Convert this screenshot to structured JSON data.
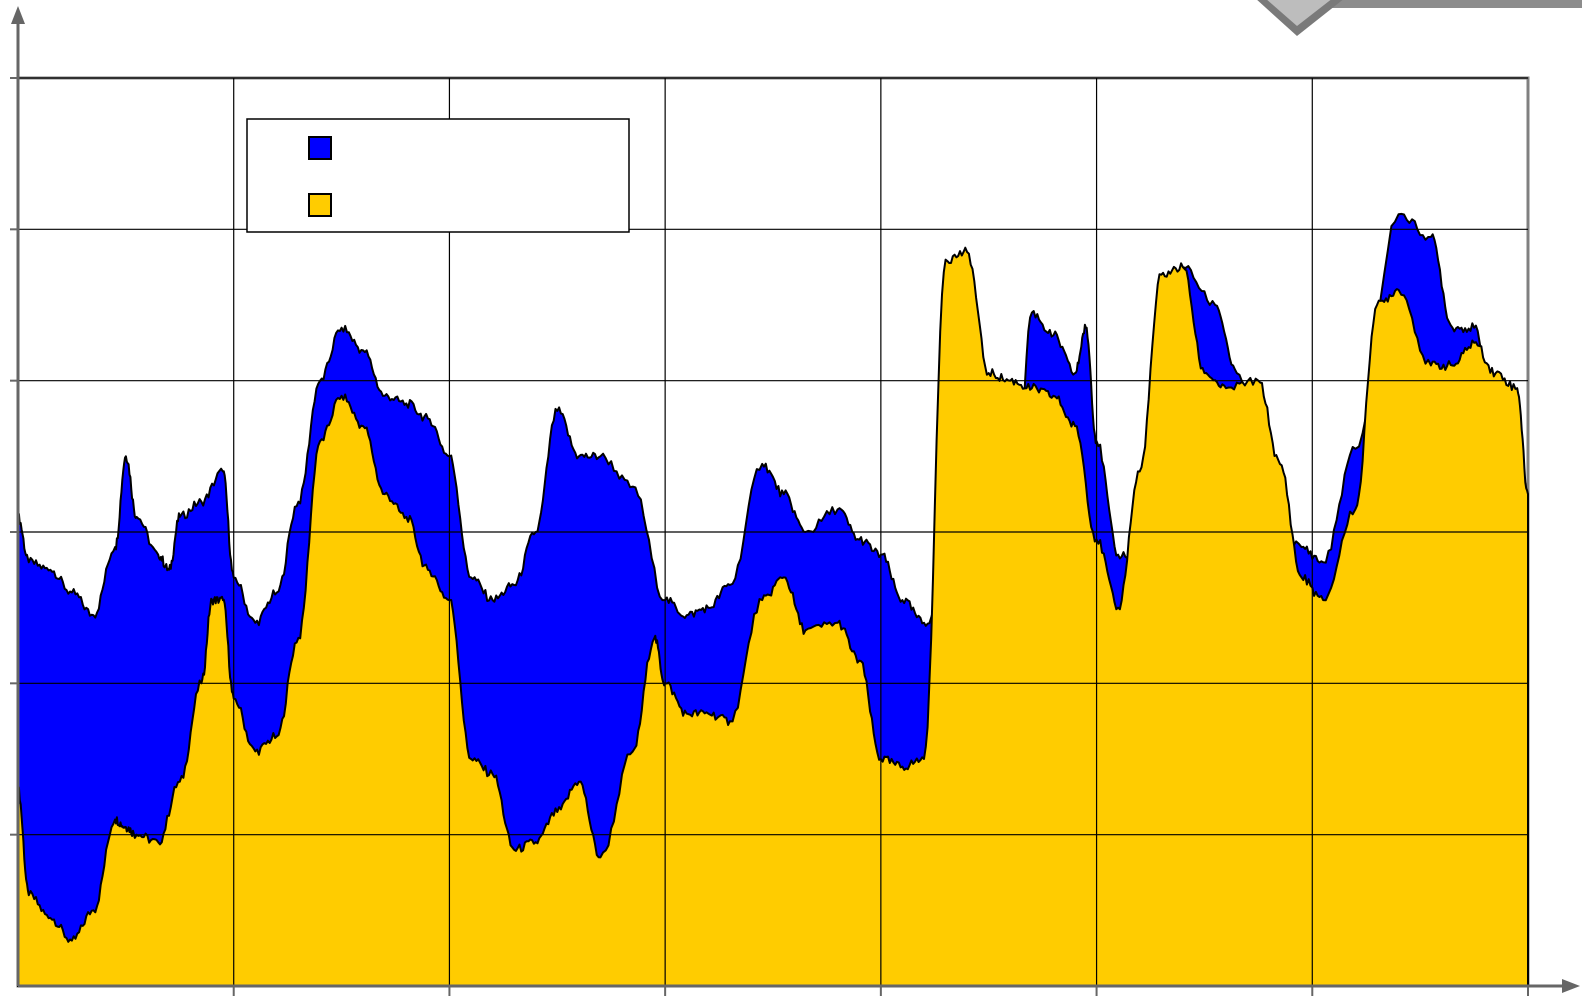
{
  "chart_data": {
    "type": "area",
    "stacked": false,
    "title": "",
    "xlabel": "",
    "ylabel": "",
    "grid": true,
    "legend_position": "top-left",
    "xlim": [
      0,
      700
    ],
    "ylim": [
      0,
      6
    ],
    "x_grid_lines": [
      0,
      100,
      200,
      300,
      400,
      500,
      600,
      700
    ],
    "y_grid_lines": [
      0,
      1,
      2,
      3,
      4,
      5,
      6
    ],
    "series": [
      {
        "name": "",
        "color": "#0000FF",
        "points": [
          [
            0,
            3.1
          ],
          [
            5,
            2.8
          ],
          [
            15,
            2.75
          ],
          [
            25,
            2.6
          ],
          [
            35,
            2.45
          ],
          [
            45,
            2.9
          ],
          [
            50,
            3.5
          ],
          [
            55,
            3.1
          ],
          [
            65,
            2.85
          ],
          [
            70,
            2.75
          ],
          [
            75,
            3.1
          ],
          [
            85,
            3.2
          ],
          [
            95,
            3.4
          ],
          [
            100,
            2.7
          ],
          [
            110,
            2.4
          ],
          [
            120,
            2.6
          ],
          [
            130,
            3.2
          ],
          [
            140,
            4.0
          ],
          [
            150,
            4.35
          ],
          [
            160,
            4.2
          ],
          [
            170,
            3.9
          ],
          [
            180,
            3.85
          ],
          [
            190,
            3.75
          ],
          [
            200,
            3.5
          ],
          [
            210,
            2.7
          ],
          [
            220,
            2.55
          ],
          [
            230,
            2.65
          ],
          [
            240,
            3.0
          ],
          [
            250,
            3.8
          ],
          [
            260,
            3.5
          ],
          [
            270,
            3.5
          ],
          [
            285,
            3.3
          ],
          [
            300,
            2.55
          ],
          [
            310,
            2.45
          ],
          [
            320,
            2.5
          ],
          [
            330,
            2.65
          ],
          [
            345,
            3.45
          ],
          [
            355,
            3.25
          ],
          [
            365,
            3.0
          ],
          [
            380,
            3.15
          ],
          [
            390,
            2.95
          ],
          [
            400,
            2.85
          ],
          [
            410,
            2.55
          ],
          [
            420,
            2.4
          ],
          [
            430,
            2.55
          ],
          [
            440,
            2.3
          ],
          [
            450,
            2.55
          ],
          [
            460,
            2.5
          ],
          [
            470,
            4.45
          ],
          [
            480,
            4.3
          ],
          [
            490,
            4.05
          ],
          [
            495,
            4.35
          ],
          [
            500,
            3.6
          ],
          [
            510,
            2.85
          ],
          [
            520,
            2.85
          ],
          [
            530,
            3.8
          ],
          [
            540,
            4.75
          ],
          [
            555,
            4.5
          ],
          [
            565,
            4.05
          ],
          [
            580,
            3.15
          ],
          [
            595,
            2.9
          ],
          [
            605,
            2.8
          ],
          [
            620,
            3.55
          ],
          [
            640,
            5.1
          ],
          [
            655,
            4.95
          ],
          [
            665,
            4.35
          ],
          [
            675,
            4.35
          ],
          [
            685,
            3.65
          ],
          [
            700,
            3.25
          ]
        ]
      },
      {
        "name": "",
        "color": "#FFCC00",
        "points": [
          [
            0,
            1.3
          ],
          [
            5,
            0.6
          ],
          [
            15,
            0.45
          ],
          [
            25,
            0.3
          ],
          [
            35,
            0.5
          ],
          [
            45,
            1.1
          ],
          [
            50,
            1.05
          ],
          [
            55,
            1.0
          ],
          [
            65,
            0.95
          ],
          [
            75,
            1.35
          ],
          [
            85,
            2.0
          ],
          [
            90,
            2.55
          ],
          [
            95,
            2.55
          ],
          [
            100,
            1.9
          ],
          [
            110,
            1.55
          ],
          [
            120,
            1.65
          ],
          [
            130,
            2.3
          ],
          [
            140,
            3.6
          ],
          [
            150,
            3.9
          ],
          [
            160,
            3.7
          ],
          [
            170,
            3.25
          ],
          [
            180,
            3.1
          ],
          [
            190,
            2.75
          ],
          [
            200,
            2.55
          ],
          [
            210,
            1.5
          ],
          [
            220,
            1.4
          ],
          [
            230,
            0.9
          ],
          [
            240,
            0.95
          ],
          [
            250,
            1.15
          ],
          [
            260,
            1.35
          ],
          [
            270,
            0.85
          ],
          [
            285,
            1.55
          ],
          [
            295,
            2.3
          ],
          [
            300,
            2.0
          ],
          [
            310,
            1.8
          ],
          [
            320,
            1.8
          ],
          [
            330,
            1.75
          ],
          [
            345,
            2.55
          ],
          [
            355,
            2.7
          ],
          [
            365,
            2.35
          ],
          [
            380,
            2.4
          ],
          [
            390,
            2.15
          ],
          [
            400,
            1.5
          ],
          [
            410,
            1.45
          ],
          [
            420,
            1.5
          ],
          [
            430,
            4.8
          ],
          [
            440,
            4.85
          ],
          [
            450,
            4.05
          ],
          [
            460,
            4.0
          ],
          [
            470,
            3.95
          ],
          [
            480,
            3.9
          ],
          [
            490,
            3.7
          ],
          [
            500,
            2.95
          ],
          [
            510,
            2.5
          ],
          [
            520,
            3.4
          ],
          [
            530,
            4.7
          ],
          [
            540,
            4.75
          ],
          [
            550,
            4.05
          ],
          [
            560,
            3.95
          ],
          [
            575,
            4.0
          ],
          [
            585,
            3.45
          ],
          [
            595,
            2.7
          ],
          [
            605,
            2.55
          ],
          [
            620,
            3.15
          ],
          [
            630,
            4.5
          ],
          [
            640,
            4.6
          ],
          [
            655,
            4.1
          ],
          [
            665,
            4.1
          ],
          [
            675,
            4.25
          ],
          [
            685,
            4.05
          ],
          [
            695,
            3.95
          ],
          [
            700,
            3.25
          ]
        ]
      }
    ]
  },
  "decor": {
    "banner_icon": "diamond-icon"
  }
}
